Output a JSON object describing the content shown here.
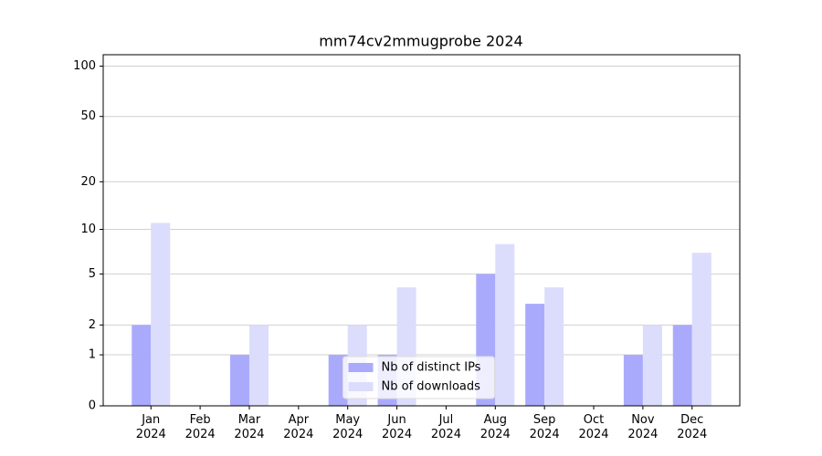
{
  "chart_data": {
    "type": "bar",
    "title": "mm74cv2mmugprobe 2024",
    "categories": [
      "Jan\n2024",
      "Feb\n2024",
      "Mar\n2024",
      "Apr\n2024",
      "May\n2024",
      "Jun\n2024",
      "Jul\n2024",
      "Aug\n2024",
      "Sep\n2024",
      "Oct\n2024",
      "Nov\n2024",
      "Dec\n2024"
    ],
    "series": [
      {
        "name": "Nb of distinct IPs",
        "color": "#aaaafc",
        "values": [
          2,
          0,
          1,
          0,
          1,
          1,
          0,
          5,
          3,
          0,
          1,
          2
        ]
      },
      {
        "name": "Nb of downloads",
        "color": "#dcdcfc",
        "values": [
          11,
          0,
          2,
          0,
          2,
          4,
          0,
          8,
          4,
          0,
          2,
          7
        ]
      }
    ],
    "yscale": "log1p",
    "ylim": [
      0,
      117
    ],
    "yticks": [
      0,
      1,
      2,
      5,
      10,
      20,
      50,
      100
    ],
    "grid": true,
    "legend": "lower center"
  }
}
